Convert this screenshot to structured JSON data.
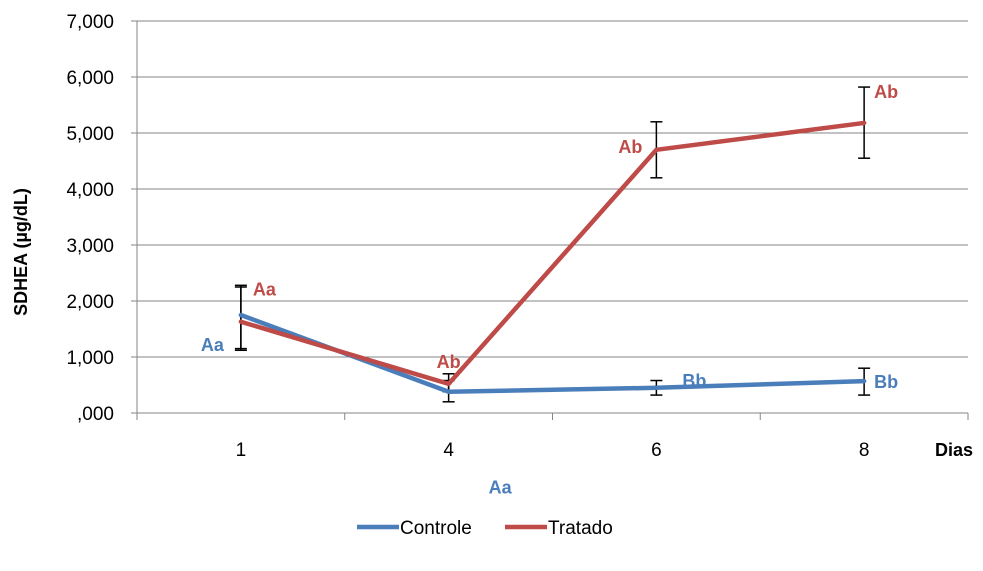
{
  "chart_data": {
    "type": "line",
    "title": "",
    "xlabel": "Dias",
    "ylabel": "SDHEA (µg/dL)",
    "categories": [
      "1",
      "4",
      "6",
      "8"
    ],
    "ylim": [
      0,
      7000
    ],
    "y_ticks": [
      ",000",
      "1,000",
      "2,000",
      "3,000",
      "4,000",
      "5,000",
      "6,000",
      "7,000"
    ],
    "y_tick_values": [
      0,
      1000,
      2000,
      3000,
      4000,
      5000,
      6000,
      7000
    ],
    "grid": "horizontal",
    "legend_position": "bottom",
    "series": [
      {
        "name": "Controle",
        "color": "#4a7ebb",
        "values": [
          1750,
          380,
          450,
          570
        ],
        "error_low": [
          1150,
          200,
          320,
          320
        ],
        "error_high": [
          2250,
          580,
          580,
          800
        ],
        "labels": [
          "Aa",
          "Aa",
          "Bb",
          "Bb"
        ]
      },
      {
        "name": "Tratado",
        "color": "#be4b48",
        "values": [
          1630,
          520,
          4700,
          5180
        ],
        "error_low": [
          1120,
          380,
          4200,
          4550
        ],
        "error_high": [
          2280,
          700,
          5200,
          5820
        ],
        "labels": [
          "Aa",
          "Ab",
          "Ab",
          "Ab"
        ]
      }
    ]
  }
}
